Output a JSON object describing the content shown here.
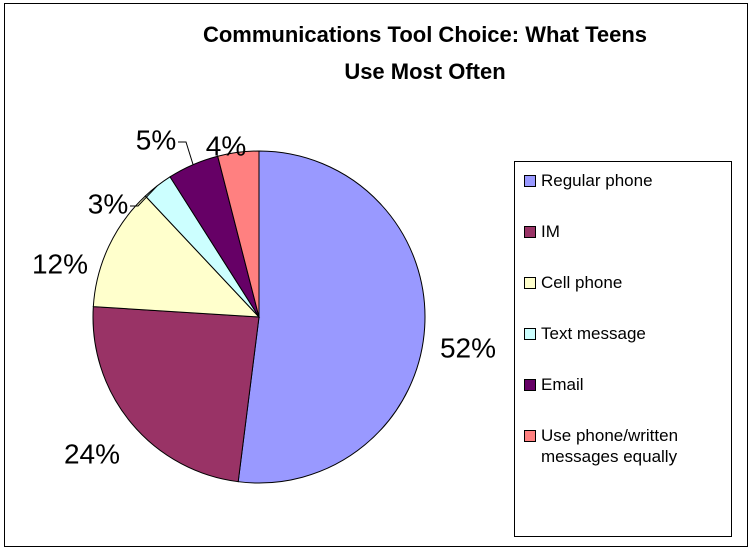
{
  "chart_data": {
    "type": "pie",
    "title": "Communications Tool Choice: What Teens Use Most Often",
    "categories": [
      "Regular phone",
      "IM",
      "Cell phone",
      "Text message",
      "Email",
      "Use phone/written messages equally"
    ],
    "values": [
      52,
      24,
      12,
      3,
      5,
      4
    ],
    "value_labels": [
      "52%",
      "24%",
      "12%",
      "3%",
      "5%",
      "4%"
    ],
    "colors": [
      "#9999ff",
      "#993366",
      "#ffffcc",
      "#ccffff",
      "#660066",
      "#ff8080"
    ],
    "legend": "right"
  }
}
